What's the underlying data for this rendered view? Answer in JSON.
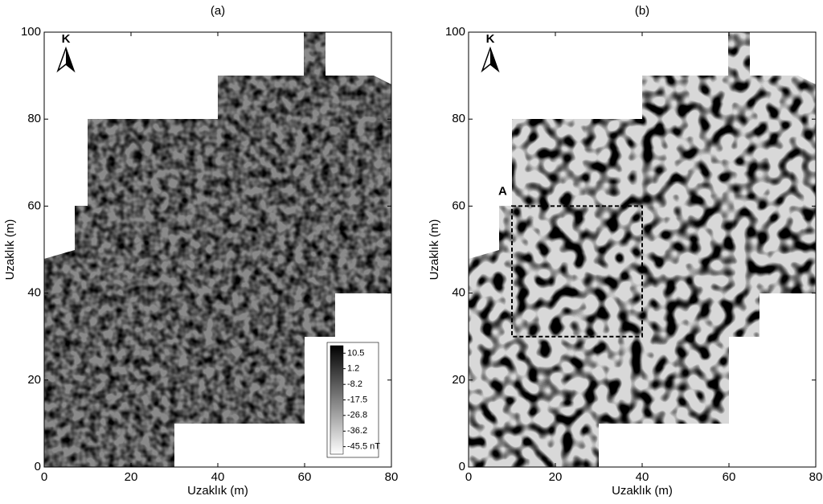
{
  "chart_data": [
    {
      "type": "map",
      "title": "(a)",
      "xlabel": "Uzaklık (m)",
      "ylabel": "Uzaklık (m)",
      "north": "K",
      "xlim": [
        0,
        80
      ],
      "ylim": [
        0,
        100
      ],
      "xticks": [
        0,
        20,
        40,
        60,
        80
      ],
      "yticks": [
        0,
        20,
        40,
        60,
        80,
        100
      ],
      "colorbar": {
        "lim": [
          -50,
          15
        ],
        "ticks": [
          10.5,
          1.2,
          -8.2,
          -17.5,
          -26.8,
          -36.2,
          {
            "value": -45.5,
            "label": "-45.5 nT"
          }
        ]
      }
    },
    {
      "type": "map",
      "title": "(b)",
      "xlabel": "Uzaklık (m)",
      "ylabel": "Uzaklık (m)",
      "north": "K",
      "xlim": [
        0,
        80
      ],
      "ylim": [
        0,
        100
      ],
      "xticks": [
        0,
        20,
        40,
        60,
        80
      ],
      "yticks": [
        0,
        20,
        40,
        60,
        80,
        100
      ],
      "box": {
        "label": "A",
        "x": [
          10,
          40
        ],
        "y": [
          30,
          60
        ]
      }
    }
  ]
}
